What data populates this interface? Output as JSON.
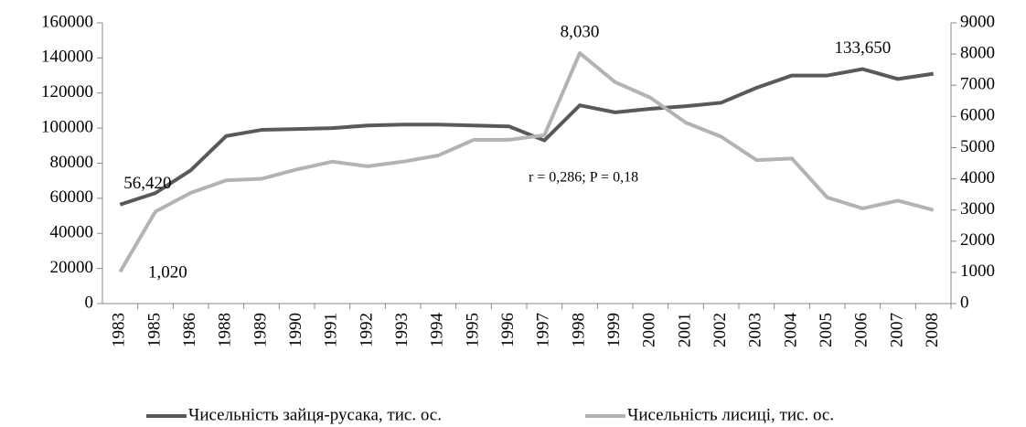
{
  "chart_data": {
    "type": "line",
    "categories": [
      "1983",
      "1985",
      "1986",
      "1988",
      "1989",
      "1990",
      "1991",
      "1992",
      "1993",
      "1994",
      "1995",
      "1996",
      "1997",
      "1998",
      "1999",
      "2000",
      "2001",
      "2002",
      "2003",
      "2004",
      "2005",
      "2006",
      "2007",
      "2008"
    ],
    "series": [
      {
        "name": "Чисельність зайця-русака, тис. ос.",
        "color": "#595959",
        "values": [
          56420,
          63000,
          76000,
          95500,
          99000,
          99500,
          100000,
          101500,
          102000,
          102000,
          101500,
          101000,
          93000,
          113000,
          109000,
          111000,
          112500,
          114500,
          123000,
          130000,
          130000,
          133650,
          128000,
          131000
        ],
        "value_labels": [
          "56,420",
          null,
          null,
          null,
          null,
          null,
          null,
          null,
          null,
          null,
          null,
          null,
          null,
          null,
          null,
          null,
          null,
          null,
          null,
          null,
          null,
          "133,650",
          null,
          null
        ]
      },
      {
        "name": "Чисельність лисиці, тис. ос.",
        "color": "#b3b3b3",
        "axis": "y2",
        "values": [
          1020,
          2950,
          3550,
          3950,
          4000,
          4300,
          4550,
          4400,
          4550,
          4750,
          5250,
          5250,
          5400,
          8030,
          7100,
          6600,
          5800,
          5350,
          4600,
          4650,
          3400,
          3050,
          3300,
          3000
        ],
        "value_labels": [
          "1,020",
          null,
          null,
          null,
          null,
          null,
          null,
          null,
          null,
          null,
          null,
          null,
          null,
          "8,030",
          null,
          null,
          null,
          null,
          null,
          null,
          null,
          null,
          null,
          null
        ]
      }
    ],
    "annotation": "r = 0,286; P = 0,18",
    "ylim": [
      0,
      160000
    ],
    "yticks": [
      0,
      20000,
      40000,
      60000,
      80000,
      100000,
      120000,
      140000,
      160000
    ],
    "y2lim": [
      0,
      9000
    ],
    "y2ticks": [
      0,
      1000,
      2000,
      3000,
      4000,
      5000,
      6000,
      7000,
      8000,
      9000
    ],
    "legend": "bottom"
  }
}
